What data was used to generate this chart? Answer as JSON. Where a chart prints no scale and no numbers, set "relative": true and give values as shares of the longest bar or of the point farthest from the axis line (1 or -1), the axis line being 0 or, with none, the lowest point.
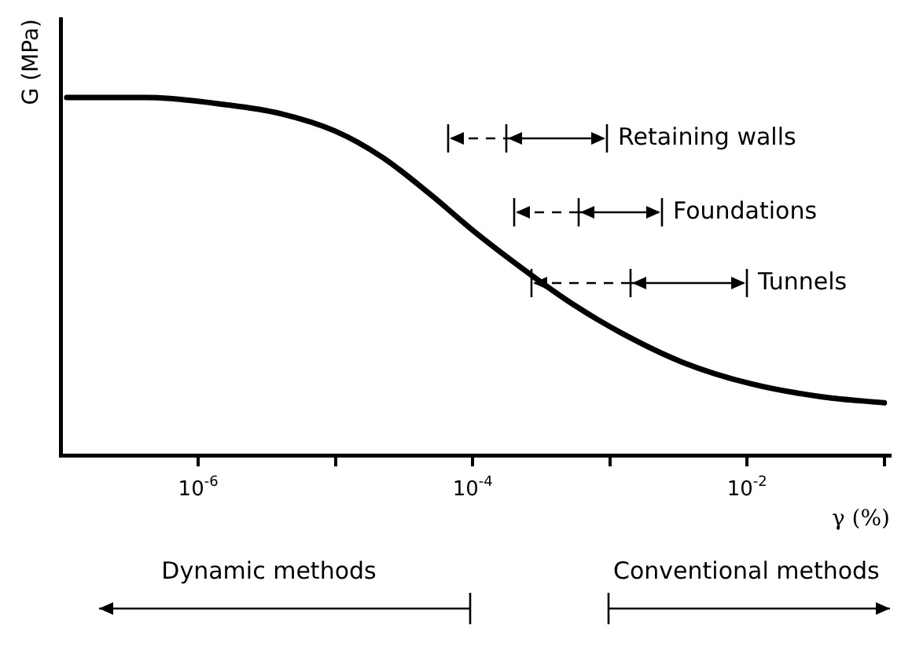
{
  "chart_data": {
    "type": "line",
    "relative": true,
    "log": "x",
    "marker": "none",
    "xlabel": "γ (%)",
    "ylabel": "G (MPa)",
    "xlim": [
      1e-07,
      0.11
    ],
    "xticks": [
      {
        "value": 1e-06,
        "label": "10$^{-6}$"
      },
      {
        "value": 1e-05,
        "label": null
      },
      {
        "value": 0.0001,
        "label": "10$^{-4}$"
      },
      {
        "value": 0.001,
        "label": null
      },
      {
        "value": 0.01,
        "label": "10$^{-2}$"
      },
      {
        "value": 0.1,
        "label": null
      }
    ],
    "x": [
      1.1e-07,
      4.2e-07,
      1.6e-06,
      4e-06,
      1e-05,
      2.2e-05,
      4.9e-05,
      0.000107,
      0.00029,
      0.00053,
      0.0012,
      0.0034,
      0.0107,
      0.036,
      0.1
    ],
    "series": [
      {
        "color": "#000000",
        "values": [
          1,
          1,
          0.98,
          0.955,
          0.906,
          0.833,
          0.73,
          0.62,
          0.494,
          0.424,
          0.343,
          0.26,
          0.2,
          0.163,
          0.147
        ]
      }
    ],
    "annotations": [
      "Retaining walls",
      "Foundations",
      "Tunnels",
      "Dynamic methods",
      "Conventional methods"
    ]
  }
}
